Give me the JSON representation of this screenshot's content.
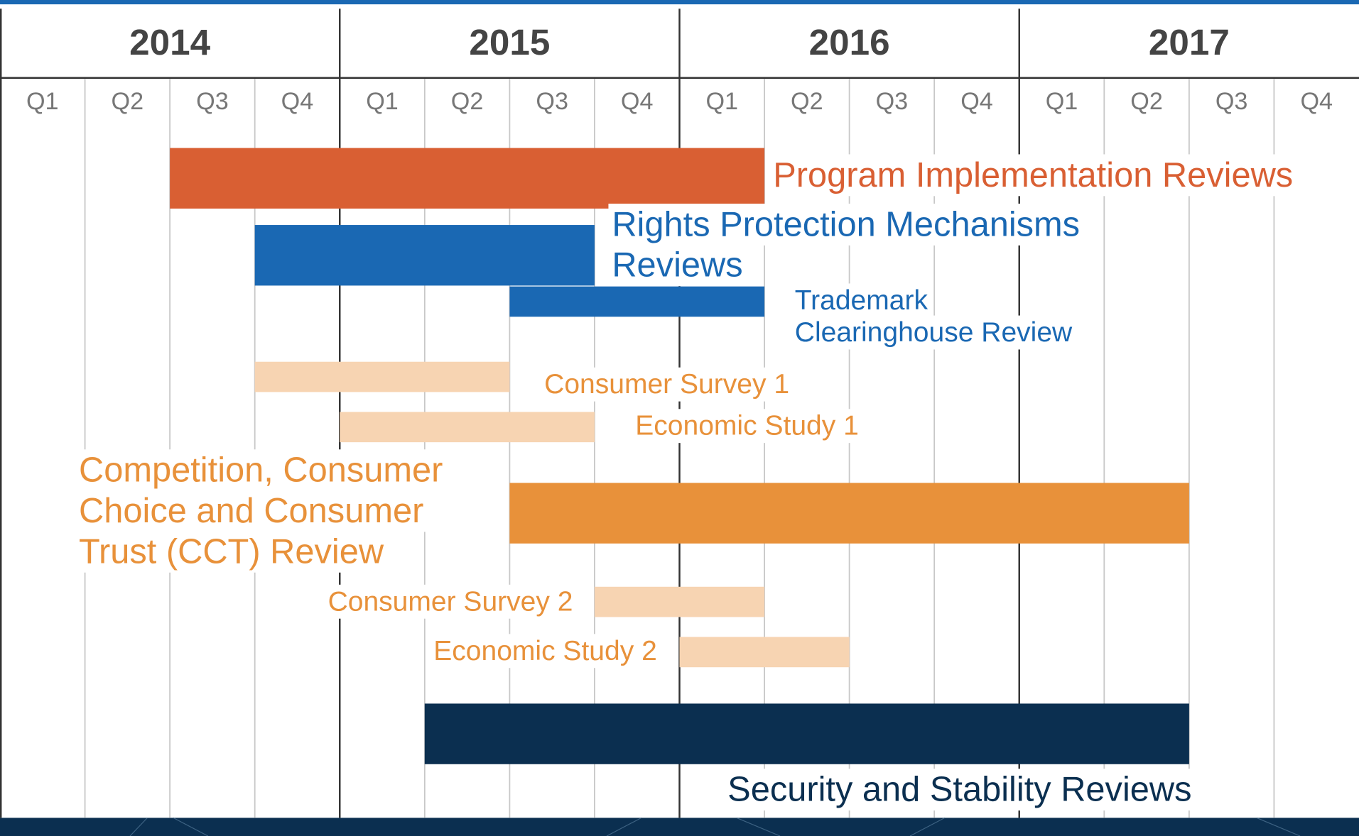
{
  "chart_data": {
    "type": "gantt",
    "years": [
      "2014",
      "2015",
      "2016",
      "2017"
    ],
    "quarters": [
      "Q1",
      "Q2",
      "Q3",
      "Q4",
      "Q1",
      "Q2",
      "Q3",
      "Q4",
      "Q1",
      "Q2",
      "Q3",
      "Q4",
      "Q1",
      "Q2",
      "Q3",
      "Q4"
    ],
    "xlim": [
      0,
      16
    ],
    "tasks": [
      {
        "name": [
          "Program Implementation Reviews"
        ],
        "start": 2,
        "end": 9,
        "color": "#d95f33",
        "label_color": "#d95f33"
      },
      {
        "name": [
          "Rights Protection Mechanisms",
          "Reviews"
        ],
        "start": 3,
        "end": 7,
        "color": "#1a68b3",
        "label_color": "#1a68b3"
      },
      {
        "name": [
          "Trademark",
          "Clearinghouse Review"
        ],
        "start": 6,
        "end": 9,
        "color": "#1a68b3",
        "label_color": "#1a68b3"
      },
      {
        "name": [
          "Consumer Survey 1"
        ],
        "start": 3,
        "end": 6,
        "color": "#f7d4b2",
        "label_color": "#e8913a"
      },
      {
        "name": [
          "Economic Study 1"
        ],
        "start": 4,
        "end": 7,
        "color": "#f7d4b2",
        "label_color": "#e8913a"
      },
      {
        "name": [
          "Competition, Consumer",
          "Choice and Consumer",
          "Trust (CCT) Review"
        ],
        "start": 6,
        "end": 14,
        "color": "#e8913a",
        "label_color": "#e8913a"
      },
      {
        "name": [
          "Consumer Survey 2"
        ],
        "start": 7,
        "end": 9,
        "color": "#f7d4b2",
        "label_color": "#e8913a"
      },
      {
        "name": [
          "Economic Study 2"
        ],
        "start": 8,
        "end": 10,
        "color": "#f7d4b2",
        "label_color": "#e8913a"
      },
      {
        "name": [
          "Security and Stability Reviews"
        ],
        "start": 5,
        "end": 14,
        "color": "#0b2f50",
        "label_color": "#0b2f50"
      }
    ]
  }
}
